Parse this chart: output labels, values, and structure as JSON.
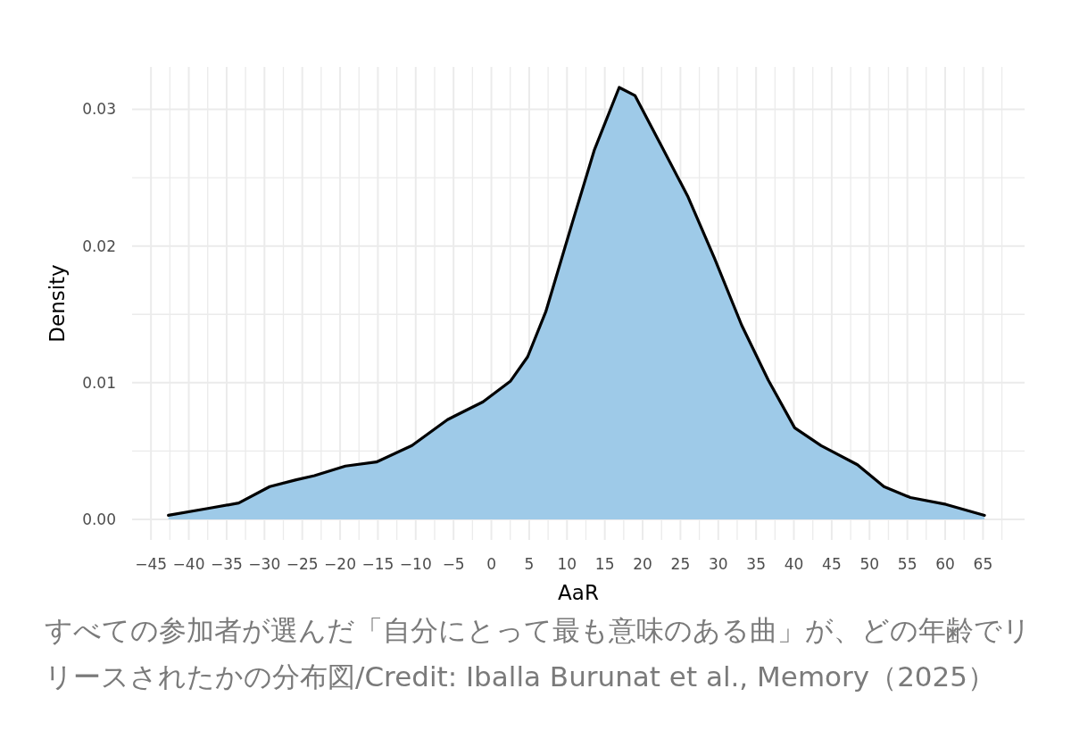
{
  "chart_data": {
    "type": "area",
    "xlabel": "AaR",
    "ylabel": "Density",
    "x": [
      -42.7,
      -37.5,
      -33.4,
      -29.3,
      -25.8,
      -23.4,
      -19.3,
      -15.2,
      -10.5,
      -5.8,
      -1.1,
      2.5,
      4.8,
      7.2,
      10.7,
      13.6,
      16.9,
      19,
      22.5,
      26,
      29.5,
      33.1,
      36.6,
      40.1,
      43.6,
      48.4,
      51.9,
      55.4,
      60.1,
      65.2
    ],
    "series": [
      {
        "color": "#9ecae8",
        "values": [
          0.0003,
          0.0008,
          0.0012,
          0.0024,
          0.0029,
          0.0032,
          0.0039,
          0.0042,
          0.0054,
          0.0073,
          0.0086,
          0.0101,
          0.0119,
          0.0152,
          0.0217,
          0.027,
          0.0316,
          0.031,
          0.0273,
          0.0236,
          0.0191,
          0.0142,
          0.0102,
          0.0067,
          0.0054,
          0.004,
          0.0024,
          0.0016,
          0.0011,
          0.0003
        ]
      }
    ],
    "xlim": [
      -47.5,
      70.5
    ],
    "ylim": [
      -0.0015,
      0.0331
    ],
    "xticks": [
      {
        "value": -45,
        "label": "−45"
      },
      {
        "value": -42.5,
        "label": null
      },
      {
        "value": -40,
        "label": "−40"
      },
      {
        "value": -37.5,
        "label": null
      },
      {
        "value": -35,
        "label": "−35"
      },
      {
        "value": -32.5,
        "label": null
      },
      {
        "value": -30,
        "label": "−30"
      },
      {
        "value": -27.5,
        "label": null
      },
      {
        "value": -25,
        "label": "−25"
      },
      {
        "value": -22.5,
        "label": null
      },
      {
        "value": -20,
        "label": "−20"
      },
      {
        "value": -17.5,
        "label": null
      },
      {
        "value": -15,
        "label": "−15"
      },
      {
        "value": -12.5,
        "label": null
      },
      {
        "value": -10,
        "label": "−10"
      },
      {
        "value": -7.5,
        "label": null
      },
      {
        "value": -5,
        "label": "−5"
      },
      {
        "value": -2.5,
        "label": null
      },
      0,
      {
        "value": 2.5,
        "label": null
      },
      5,
      {
        "value": 7.5,
        "label": null
      },
      10,
      {
        "value": 12.5,
        "label": null
      },
      15,
      {
        "value": 17.5,
        "label": null
      },
      20,
      {
        "value": 22.5,
        "label": null
      },
      25,
      {
        "value": 27.5,
        "label": null
      },
      30,
      {
        "value": 32.5,
        "label": null
      },
      35,
      {
        "value": 37.5,
        "label": null
      },
      40,
      {
        "value": 42.5,
        "label": null
      },
      45,
      {
        "value": 47.5,
        "label": null
      },
      50,
      {
        "value": 52.5,
        "label": null
      },
      55,
      {
        "value": 57.5,
        "label": null
      },
      60,
      {
        "value": 62.5,
        "label": null
      },
      65,
      {
        "value": 67.5,
        "label": null
      }
    ],
    "yticks": [
      {
        "value": 0,
        "label": "0.00"
      },
      {
        "value": 0.005,
        "label": null
      },
      {
        "value": 0.01,
        "label": "0.01"
      },
      {
        "value": 0.015,
        "label": null
      },
      {
        "value": 0.02,
        "label": "0.02"
      },
      {
        "value": 0.025,
        "label": null
      },
      {
        "value": 0.03,
        "label": "0.03"
      }
    ],
    "grid": true,
    "annotations": [
      "すべての参加者が選んだ「自分にとって最も意味のある曲」が、どの年齢でリリースされたかの分布図/Credit: Iballa Burunat et al., Memory（2025）"
    ]
  }
}
